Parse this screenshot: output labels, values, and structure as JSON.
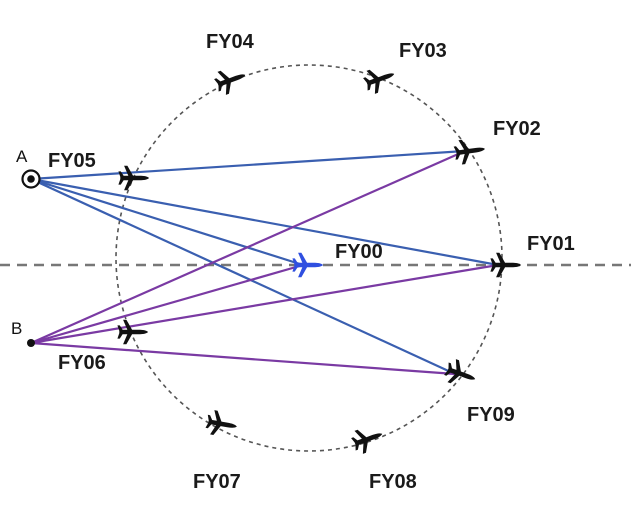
{
  "colors": {
    "blue_line": "#3a5fb0",
    "purple_line": "#7a3aa3",
    "aircraft": "#111111",
    "center_aircraft": "#2f4fe0",
    "dashed": "#777777",
    "circle": "#555555"
  },
  "points": {
    "A": {
      "label": "A",
      "icon": "target-circle-icon"
    },
    "B": {
      "label": "B",
      "icon": "dot-icon"
    }
  },
  "aircraft": [
    {
      "id": "FY00",
      "label": "FY00",
      "icon": "airplane-icon"
    },
    {
      "id": "FY01",
      "label": "FY01",
      "icon": "airplane-icon"
    },
    {
      "id": "FY02",
      "label": "FY02",
      "icon": "airplane-icon"
    },
    {
      "id": "FY03",
      "label": "FY03",
      "icon": "airplane-icon"
    },
    {
      "id": "FY04",
      "label": "FY04",
      "icon": "airplane-icon"
    },
    {
      "id": "FY05",
      "label": "FY05",
      "icon": "airplane-icon"
    },
    {
      "id": "FY06",
      "label": "FY06",
      "icon": "airplane-icon"
    },
    {
      "id": "FY07",
      "label": "FY07",
      "icon": "airplane-icon"
    },
    {
      "id": "FY08",
      "label": "FY08",
      "icon": "airplane-icon"
    },
    {
      "id": "FY09",
      "label": "FY09",
      "icon": "airplane-icon"
    }
  ],
  "links": [
    {
      "from": "A",
      "to": "FY02",
      "color": "blue"
    },
    {
      "from": "A",
      "to": "FY01",
      "color": "blue"
    },
    {
      "from": "A",
      "to": "FY00",
      "color": "blue"
    },
    {
      "from": "A",
      "to": "FY09",
      "color": "blue"
    },
    {
      "from": "B",
      "to": "FY02",
      "color": "purple"
    },
    {
      "from": "B",
      "to": "FY00",
      "color": "purple"
    },
    {
      "from": "B",
      "to": "FY01",
      "color": "purple"
    },
    {
      "from": "B",
      "to": "FY09",
      "color": "purple"
    }
  ]
}
